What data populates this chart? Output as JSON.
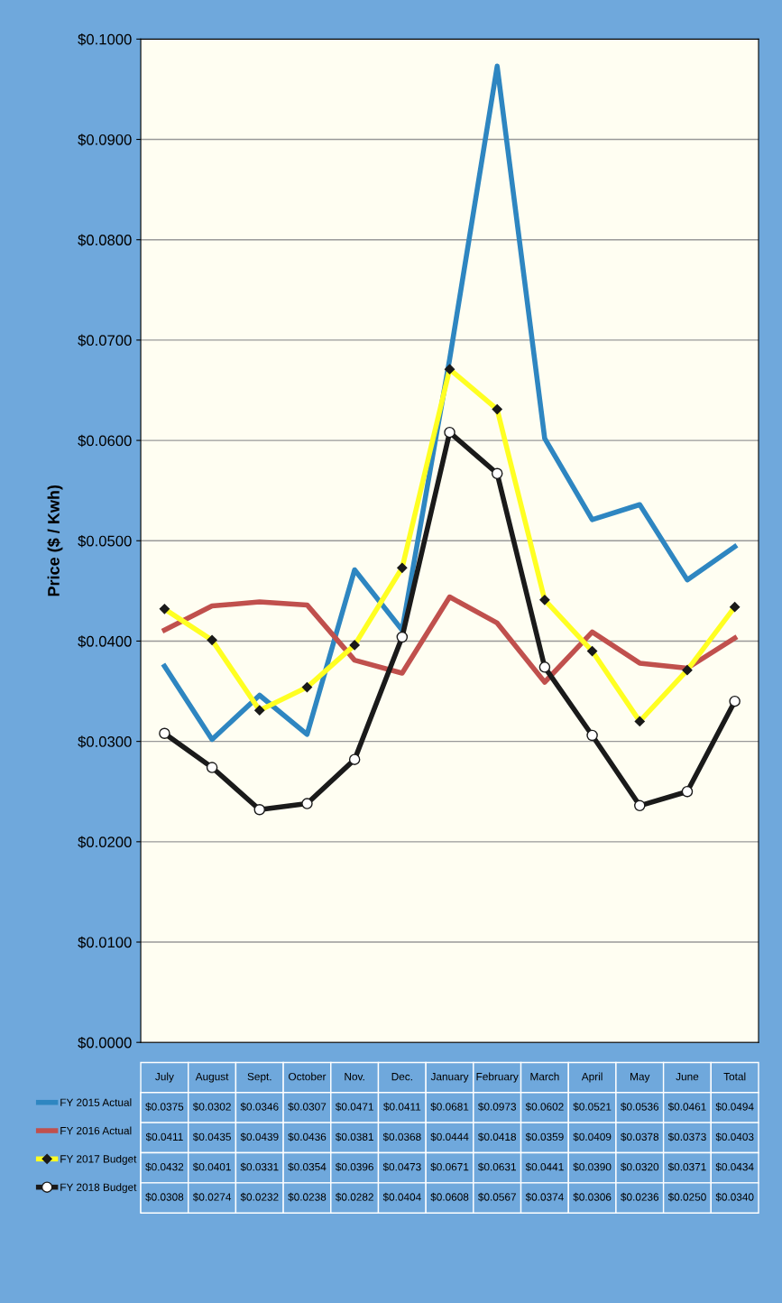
{
  "chart_data": {
    "type": "line",
    "ylabel": "Price ($ / Kwh)",
    "categories": [
      "July",
      "August",
      "Sept.",
      "October",
      "Nov.",
      "Dec.",
      "January",
      "February",
      "March",
      "April",
      "May",
      "June",
      "Total"
    ],
    "series": [
      {
        "name": "FY 2015 Actual",
        "color": "#2e86c1",
        "marker": "none",
        "values": [
          0.0375,
          0.0302,
          0.0346,
          0.0307,
          0.0471,
          0.0411,
          0.0681,
          0.0973,
          0.0602,
          0.0521,
          0.0536,
          0.0461,
          0.0494
        ],
        "value_labels": [
          "$0.0375",
          "$0.0302",
          "$0.0346",
          "$0.0307",
          "$0.0471",
          "$0.0411",
          "$0.0681",
          "$0.0973",
          "$0.0602",
          "$0.0521",
          "$0.0536",
          "$0.0461",
          "$0.0494"
        ]
      },
      {
        "name": "FY 2016 Actual",
        "color": "#c0504d",
        "marker": "none",
        "values": [
          0.0411,
          0.0435,
          0.0439,
          0.0436,
          0.0381,
          0.0368,
          0.0444,
          0.0418,
          0.0359,
          0.0409,
          0.0378,
          0.0373,
          0.0403
        ],
        "value_labels": [
          "$0.0411",
          "$0.0435",
          "$0.0439",
          "$0.0436",
          "$0.0381",
          "$0.0368",
          "$0.0444",
          "$0.0418",
          "$0.0359",
          "$0.0409",
          "$0.0378",
          "$0.0373",
          "$0.0403"
        ]
      },
      {
        "name": "FY 2017 Budget",
        "color": "#ffff22",
        "marker": "diamond",
        "values": [
          0.0432,
          0.0401,
          0.0331,
          0.0354,
          0.0396,
          0.0473,
          0.0671,
          0.0631,
          0.0441,
          0.039,
          0.032,
          0.0371,
          0.0434
        ],
        "value_labels": [
          "$0.0432",
          "$0.0401",
          "$0.0331",
          "$0.0354",
          "$0.0396",
          "$0.0473",
          "$0.0671",
          "$0.0631",
          "$0.0441",
          "$0.0390",
          "$0.0320",
          "$0.0371",
          "$0.0434"
        ]
      },
      {
        "name": "FY 2018 Budget",
        "color": "#1a1a1a",
        "marker": "circle",
        "values": [
          0.0308,
          0.0274,
          0.0232,
          0.0238,
          0.0282,
          0.0404,
          0.0608,
          0.0567,
          0.0374,
          0.0306,
          0.0236,
          0.025,
          0.034
        ],
        "value_labels": [
          "$0.0308",
          "$0.0274",
          "$0.0232",
          "$0.0238",
          "$0.0282",
          "$0.0404",
          "$0.0608",
          "$0.0567",
          "$0.0374",
          "$0.0306",
          "$0.0236",
          "$0.0250",
          "$0.0340"
        ]
      }
    ],
    "ylim": [
      0,
      0.1
    ],
    "yticks": [
      {
        "value": 0,
        "label": "$0.0000"
      },
      {
        "value": 0.01,
        "label": "$0.0100"
      },
      {
        "value": 0.02,
        "label": "$0.0200"
      },
      {
        "value": 0.03,
        "label": "$0.0300"
      },
      {
        "value": 0.04,
        "label": "$0.0400"
      },
      {
        "value": 0.05,
        "label": "$0.0500"
      },
      {
        "value": 0.06,
        "label": "$0.0600"
      },
      {
        "value": 0.07,
        "label": "$0.0700"
      },
      {
        "value": 0.08,
        "label": "$0.0800"
      },
      {
        "value": 0.09,
        "label": "$0.0900"
      },
      {
        "value": 0.1,
        "label": "$0.1000"
      }
    ],
    "grid": "y",
    "legend": "bottom"
  }
}
